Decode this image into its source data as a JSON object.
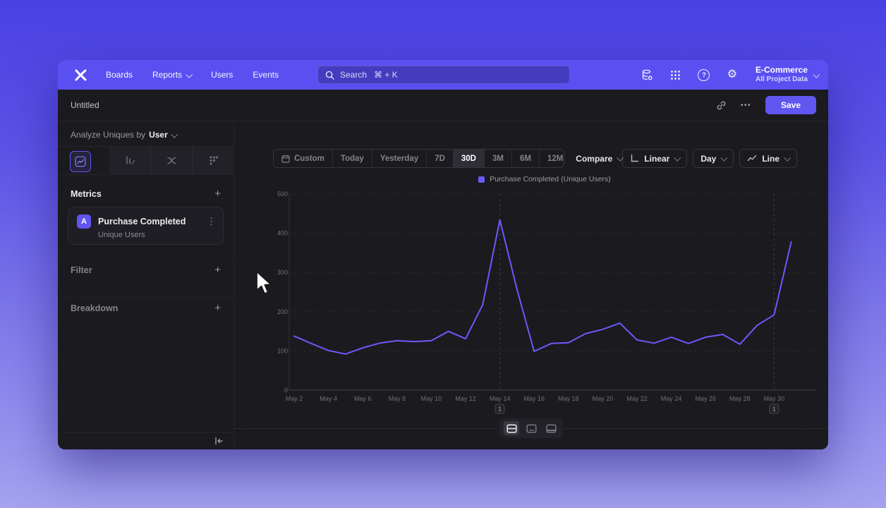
{
  "colors": {
    "nav": "#5a50f2",
    "accent": "#6156f0",
    "series": "#6a5af9"
  },
  "nav": {
    "items": [
      {
        "label": "Boards"
      },
      {
        "label": "Reports"
      },
      {
        "label": "Users"
      },
      {
        "label": "Events"
      }
    ],
    "search_label": "Search",
    "search_shortcut": "⌘ + K",
    "project_name": "E-Commerce",
    "project_scope": "All Project Data"
  },
  "icons": {
    "help": "?",
    "gear": "⚙",
    "kebab": "⋮"
  },
  "titlebar": {
    "title": "Untitled",
    "more_label": "•••",
    "save_label": "Save"
  },
  "sidebar": {
    "analyze_prefix": "Analyze Uniques by",
    "analyze_entity": "User",
    "metrics_title": "Metrics",
    "add_symbol": "+",
    "metric": {
      "badge": "A",
      "event": "Purchase Completed",
      "measure": "Unique Users"
    },
    "filter_label": "Filter",
    "breakdown_label": "Breakdown"
  },
  "toolbar": {
    "ranges": [
      "Custom",
      "Today",
      "Yesterday",
      "7D",
      "30D",
      "3M",
      "6M",
      "12M"
    ],
    "selected_range": "30D",
    "compare": "Compare",
    "scale": "Linear",
    "interval": "Day",
    "chart_type": "Line"
  },
  "chart_data": {
    "type": "line",
    "legend": "Purchase Completed (Unique Users)",
    "series_color": "#6a5af9",
    "x": [
      "May 2",
      "May 3",
      "May 4",
      "May 5",
      "May 6",
      "May 7",
      "May 8",
      "May 9",
      "May 10",
      "May 11",
      "May 12",
      "May 13",
      "May 14",
      "May 15",
      "May 16",
      "May 17",
      "May 18",
      "May 19",
      "May 20",
      "May 21",
      "May 22",
      "May 23",
      "May 24",
      "May 25",
      "May 26",
      "May 27",
      "May 28",
      "May 29",
      "May 30",
      "May 31"
    ],
    "values": [
      138,
      119,
      101,
      92,
      108,
      120,
      126,
      124,
      126,
      150,
      131,
      218,
      434,
      257,
      99,
      119,
      121,
      144,
      155,
      171,
      128,
      120,
      135,
      119,
      135,
      142,
      117,
      165,
      192,
      378
    ],
    "ylim": [
      0,
      500
    ],
    "yticks": [
      0,
      100,
      200,
      300,
      400,
      500
    ],
    "x_tick_every": 2,
    "grid": "dashed-horizontal",
    "legend_position": "top-center",
    "annotations": [
      {
        "index": 12,
        "x": "May 14",
        "label": "1"
      },
      {
        "index": 28,
        "x": "May 30",
        "label": "1"
      }
    ]
  }
}
